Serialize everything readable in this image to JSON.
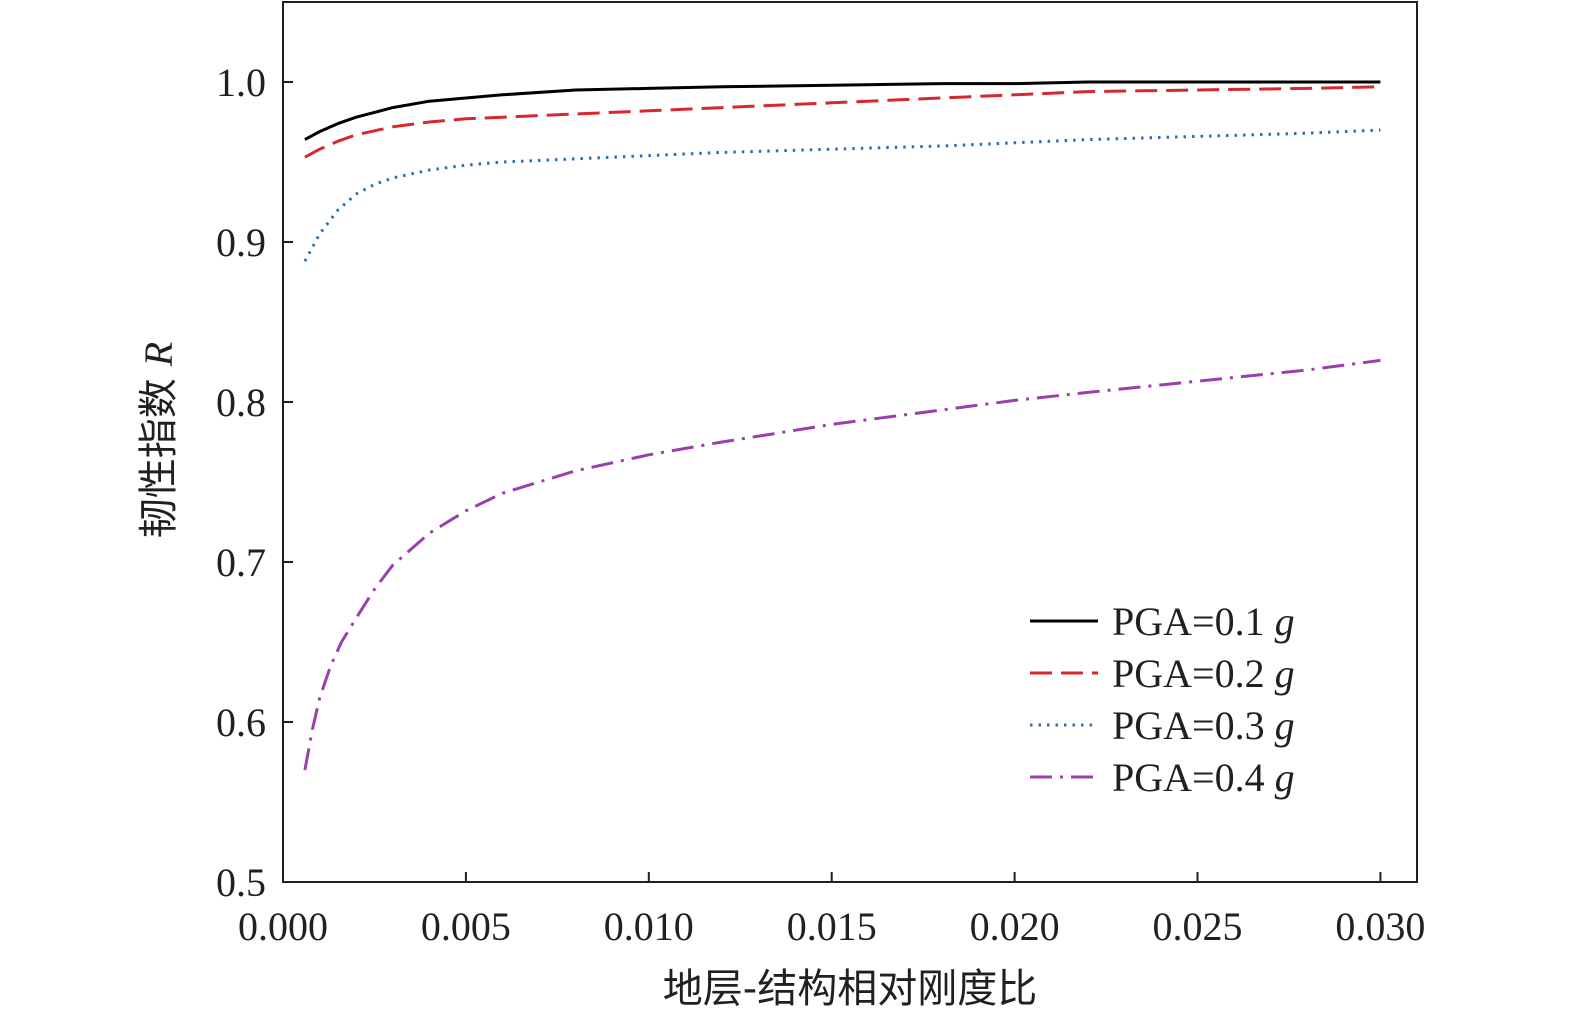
{
  "chart_data": {
    "type": "line",
    "xlabel": "地层-结构相对刚度比",
    "ylabel": "韧性指数",
    "ylabel_symbol": "R",
    "xlim": [
      0.0,
      0.031
    ],
    "ylim": [
      0.5,
      1.05
    ],
    "x_ticks": [
      0.0,
      0.005,
      0.01,
      0.015,
      0.02,
      0.025,
      0.03
    ],
    "x_tick_labels": [
      "0.000",
      "0.005",
      "0.010",
      "0.015",
      "0.020",
      "0.025",
      "0.030"
    ],
    "y_ticks": [
      0.5,
      0.6,
      0.7,
      0.8,
      0.9,
      1.0
    ],
    "y_tick_labels": [
      "0.5",
      "0.6",
      "0.7",
      "0.8",
      "0.9",
      "1.0"
    ],
    "grid": false,
    "legend_position": "bottom-right",
    "series": [
      {
        "name": "PGA=0.1",
        "unit": "g",
        "color": "#000000",
        "dash": "solid",
        "x": [
          0.0006,
          0.001,
          0.0015,
          0.002,
          0.003,
          0.004,
          0.005,
          0.006,
          0.008,
          0.01,
          0.012,
          0.015,
          0.018,
          0.02,
          0.022,
          0.025,
          0.028,
          0.03
        ],
        "y": [
          0.964,
          0.969,
          0.974,
          0.978,
          0.984,
          0.988,
          0.99,
          0.992,
          0.995,
          0.996,
          0.997,
          0.998,
          0.999,
          0.999,
          1.0,
          1.0,
          1.0,
          1.0
        ]
      },
      {
        "name": "PGA=0.2",
        "unit": "g",
        "color": "#d7282f",
        "dash": "dash",
        "x": [
          0.0006,
          0.001,
          0.0015,
          0.002,
          0.003,
          0.004,
          0.005,
          0.006,
          0.008,
          0.01,
          0.012,
          0.015,
          0.018,
          0.02,
          0.022,
          0.025,
          0.028,
          0.03
        ],
        "y": [
          0.953,
          0.958,
          0.963,
          0.967,
          0.972,
          0.975,
          0.977,
          0.978,
          0.98,
          0.982,
          0.984,
          0.987,
          0.99,
          0.992,
          0.994,
          0.995,
          0.996,
          0.997
        ]
      },
      {
        "name": "PGA=0.3",
        "unit": "g",
        "color": "#2e6db4",
        "dash": "dot",
        "x": [
          0.0006,
          0.001,
          0.0015,
          0.002,
          0.0025,
          0.003,
          0.004,
          0.005,
          0.006,
          0.008,
          0.01,
          0.012,
          0.015,
          0.018,
          0.02,
          0.022,
          0.025,
          0.028,
          0.03
        ],
        "y": [
          0.888,
          0.905,
          0.92,
          0.93,
          0.936,
          0.94,
          0.945,
          0.948,
          0.95,
          0.952,
          0.954,
          0.956,
          0.958,
          0.96,
          0.962,
          0.964,
          0.966,
          0.968,
          0.97
        ]
      },
      {
        "name": "PGA=0.4",
        "unit": "g",
        "color": "#9b3fae",
        "dash": "dashdot",
        "x": [
          0.0006,
          0.0008,
          0.001,
          0.0013,
          0.0016,
          0.002,
          0.0025,
          0.003,
          0.004,
          0.005,
          0.006,
          0.008,
          0.01,
          0.012,
          0.015,
          0.018,
          0.02,
          0.022,
          0.025,
          0.028,
          0.03
        ],
        "y": [
          0.57,
          0.595,
          0.615,
          0.635,
          0.65,
          0.665,
          0.683,
          0.698,
          0.718,
          0.732,
          0.743,
          0.757,
          0.767,
          0.775,
          0.786,
          0.795,
          0.801,
          0.806,
          0.813,
          0.82,
          0.826
        ]
      }
    ]
  }
}
